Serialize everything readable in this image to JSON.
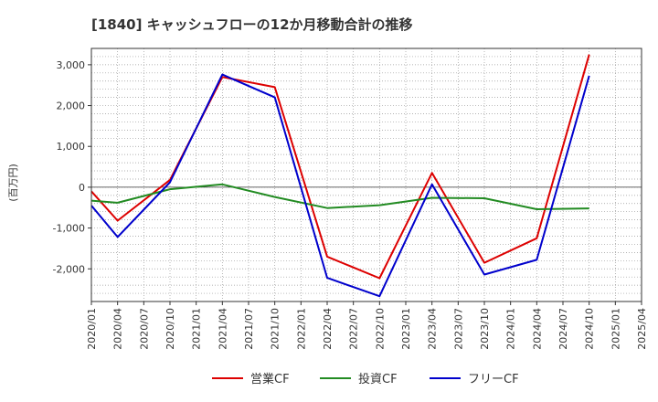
{
  "chart_data": {
    "type": "line",
    "title": "[1840]  キャッシュフローの12か月移動合計の推移",
    "ylabel": "(百万円)",
    "xlabel": "",
    "ylim": [
      -2800,
      3400
    ],
    "yticks": [
      3000,
      2000,
      1000,
      0,
      -1000,
      -2000
    ],
    "ytick_labels": [
      "3,000",
      "2,000",
      "1,000",
      "0",
      "-1,000",
      "-2,000"
    ],
    "categories": [
      "2020/01",
      "2020/04",
      "2020/07",
      "2020/10",
      "2021/01",
      "2021/04",
      "2021/07",
      "2021/10",
      "2022/01",
      "2022/04",
      "2022/07",
      "2022/10",
      "2023/01",
      "2023/04",
      "2023/07",
      "2023/10",
      "2024/01",
      "2024/04",
      "2024/07",
      "2024/10",
      "2025/01",
      "2025/04"
    ],
    "grid": true,
    "legend_position": "bottom",
    "series": [
      {
        "name": "営業CF",
        "color": "#dd0000",
        "points": [
          [
            0,
            -100
          ],
          [
            1,
            -820
          ],
          [
            3,
            180
          ],
          [
            5,
            2700
          ],
          [
            7,
            2450
          ],
          [
            9,
            -1700
          ],
          [
            11,
            -2230
          ],
          [
            13,
            350
          ],
          [
            15,
            -1850
          ],
          [
            17,
            -1250
          ],
          [
            19,
            3250
          ]
        ]
      },
      {
        "name": "投資CF",
        "color": "#228b22",
        "points": [
          [
            0,
            -330
          ],
          [
            1,
            -380
          ],
          [
            3,
            -50
          ],
          [
            5,
            70
          ],
          [
            7,
            -240
          ],
          [
            9,
            -510
          ],
          [
            11,
            -440
          ],
          [
            13,
            -260
          ],
          [
            15,
            -270
          ],
          [
            17,
            -540
          ],
          [
            19,
            -520
          ]
        ]
      },
      {
        "name": "フリーCF",
        "color": "#0000cc",
        "points": [
          [
            0,
            -450
          ],
          [
            1,
            -1220
          ],
          [
            3,
            120
          ],
          [
            5,
            2760
          ],
          [
            7,
            2200
          ],
          [
            9,
            -2220
          ],
          [
            11,
            -2670
          ],
          [
            13,
            70
          ],
          [
            15,
            -2140
          ],
          [
            17,
            -1780
          ],
          [
            19,
            2730
          ]
        ]
      }
    ]
  }
}
